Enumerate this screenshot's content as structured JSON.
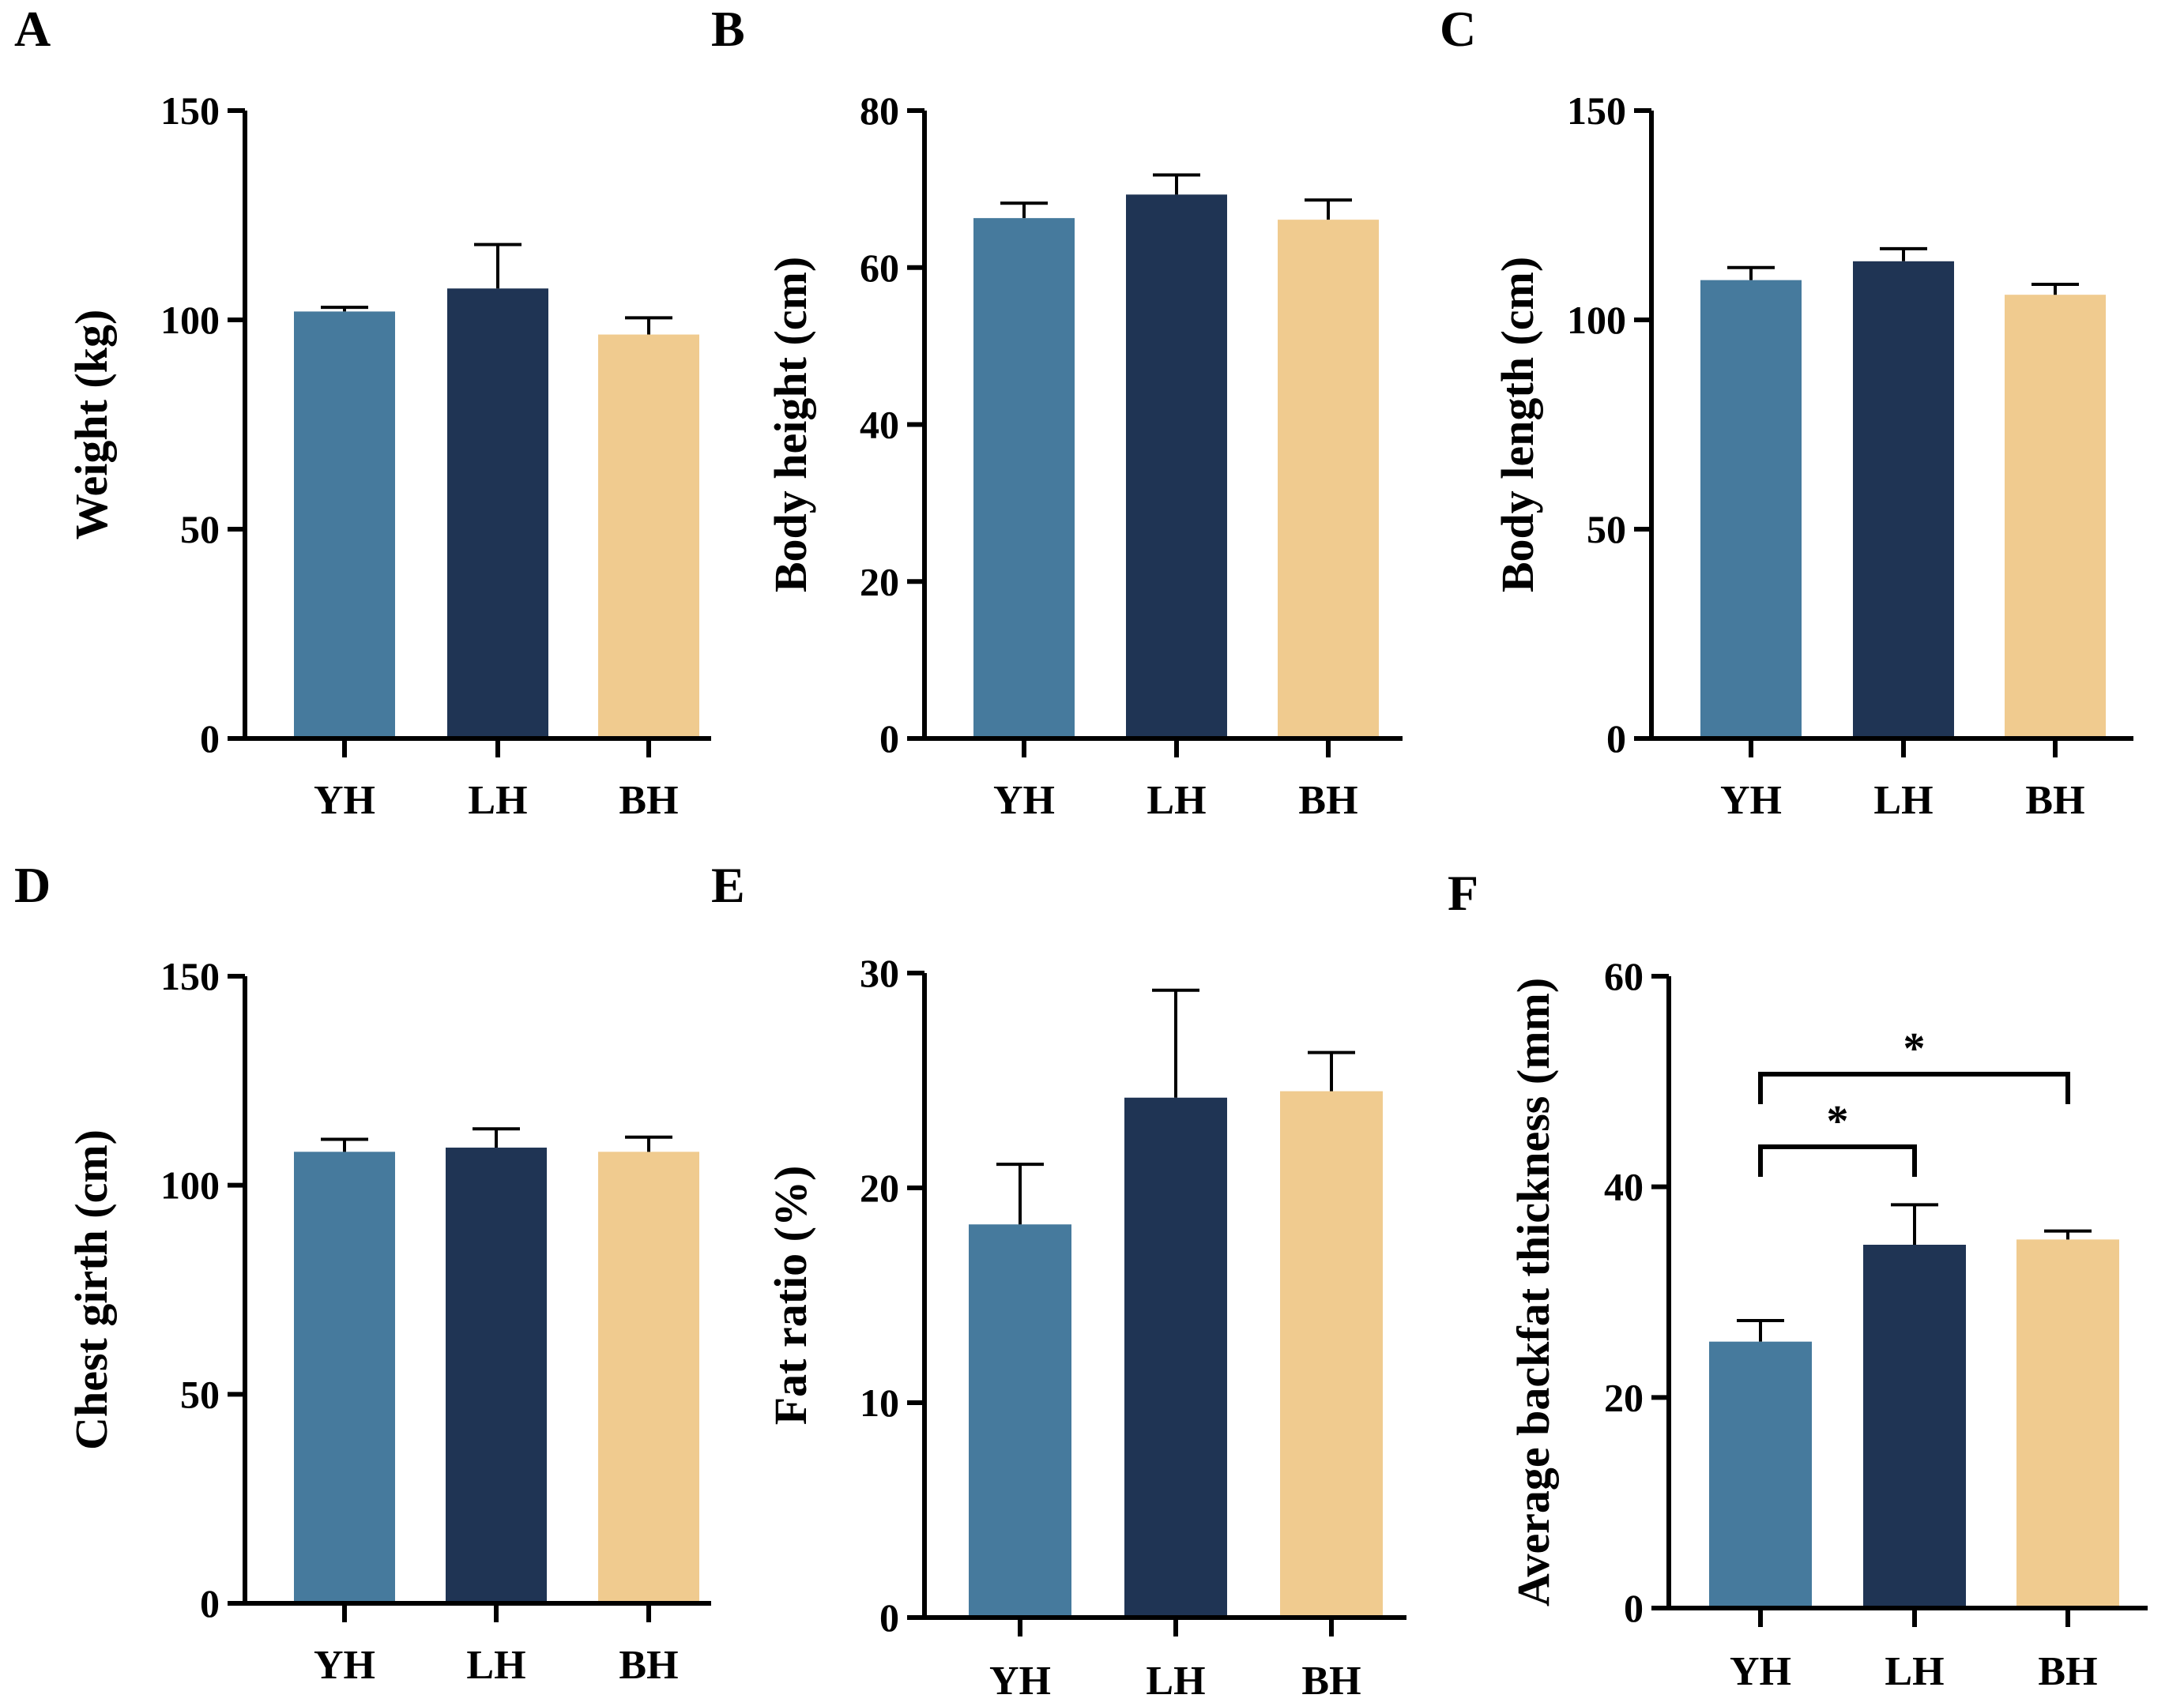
{
  "figure": {
    "categories": [
      "YH",
      "LH",
      "BH"
    ],
    "colors": {
      "YH": "#467a9d",
      "LH": "#1f3454",
      "BH": "#f0cb8f"
    }
  },
  "chart_data": [
    {
      "type": "bar",
      "panel": "A",
      "title": "",
      "ylabel": "Weight (kg)",
      "xlabel": "",
      "categories": [
        "YH",
        "LH",
        "BH"
      ],
      "values": [
        102,
        107.5,
        96.5
      ],
      "errors": [
        1,
        10.5,
        4
      ],
      "ylim": [
        0,
        150
      ],
      "yticks": [
        0,
        50,
        100,
        150
      ]
    },
    {
      "type": "bar",
      "panel": "B",
      "title": "",
      "ylabel": "Body height (cm)",
      "xlabel": "",
      "categories": [
        "YH",
        "LH",
        "BH"
      ],
      "values": [
        66.3,
        69.3,
        66.1
      ],
      "errors": [
        1.9,
        2.5,
        2.5
      ],
      "ylim": [
        0,
        80
      ],
      "yticks": [
        0,
        20,
        40,
        60,
        80
      ]
    },
    {
      "type": "bar",
      "panel": "C",
      "title": "",
      "ylabel": "Body length (cm)",
      "xlabel": "",
      "categories": [
        "YH",
        "LH",
        "BH"
      ],
      "values": [
        109.5,
        114,
        106
      ],
      "errors": [
        3,
        3,
        2.5
      ],
      "ylim": [
        0,
        150
      ],
      "yticks": [
        0,
        50,
        100,
        150
      ]
    },
    {
      "type": "bar",
      "panel": "D",
      "title": "",
      "ylabel": "Chest girth (cm)",
      "xlabel": "",
      "categories": [
        "YH",
        "LH",
        "BH"
      ],
      "values": [
        108,
        109,
        108
      ],
      "errors": [
        3,
        4.5,
        3.5
      ],
      "ylim": [
        0,
        150
      ],
      "yticks": [
        0,
        50,
        100,
        150
      ]
    },
    {
      "type": "bar",
      "panel": "E",
      "title": "",
      "ylabel": "Fat ratio (%)",
      "xlabel": "",
      "categories": [
        "YH",
        "LH",
        "BH"
      ],
      "values": [
        18.3,
        24.2,
        24.5
      ],
      "errors": [
        2.8,
        5,
        1.8
      ],
      "ylim": [
        0,
        30
      ],
      "yticks": [
        0,
        10,
        20,
        30
      ]
    },
    {
      "type": "bar",
      "panel": "F",
      "title": "",
      "ylabel": "Average backfat thickness (mm)",
      "xlabel": "",
      "categories": [
        "YH",
        "LH",
        "BH"
      ],
      "values": [
        25.3,
        34.5,
        35
      ],
      "errors": [
        2,
        3.8,
        0.8
      ],
      "ylim": [
        0,
        60
      ],
      "yticks": [
        0,
        20,
        40,
        60
      ],
      "significance": [
        {
          "from": "YH",
          "to": "LH",
          "label": "*"
        },
        {
          "from": "YH",
          "to": "BH",
          "label": "*"
        }
      ]
    }
  ]
}
